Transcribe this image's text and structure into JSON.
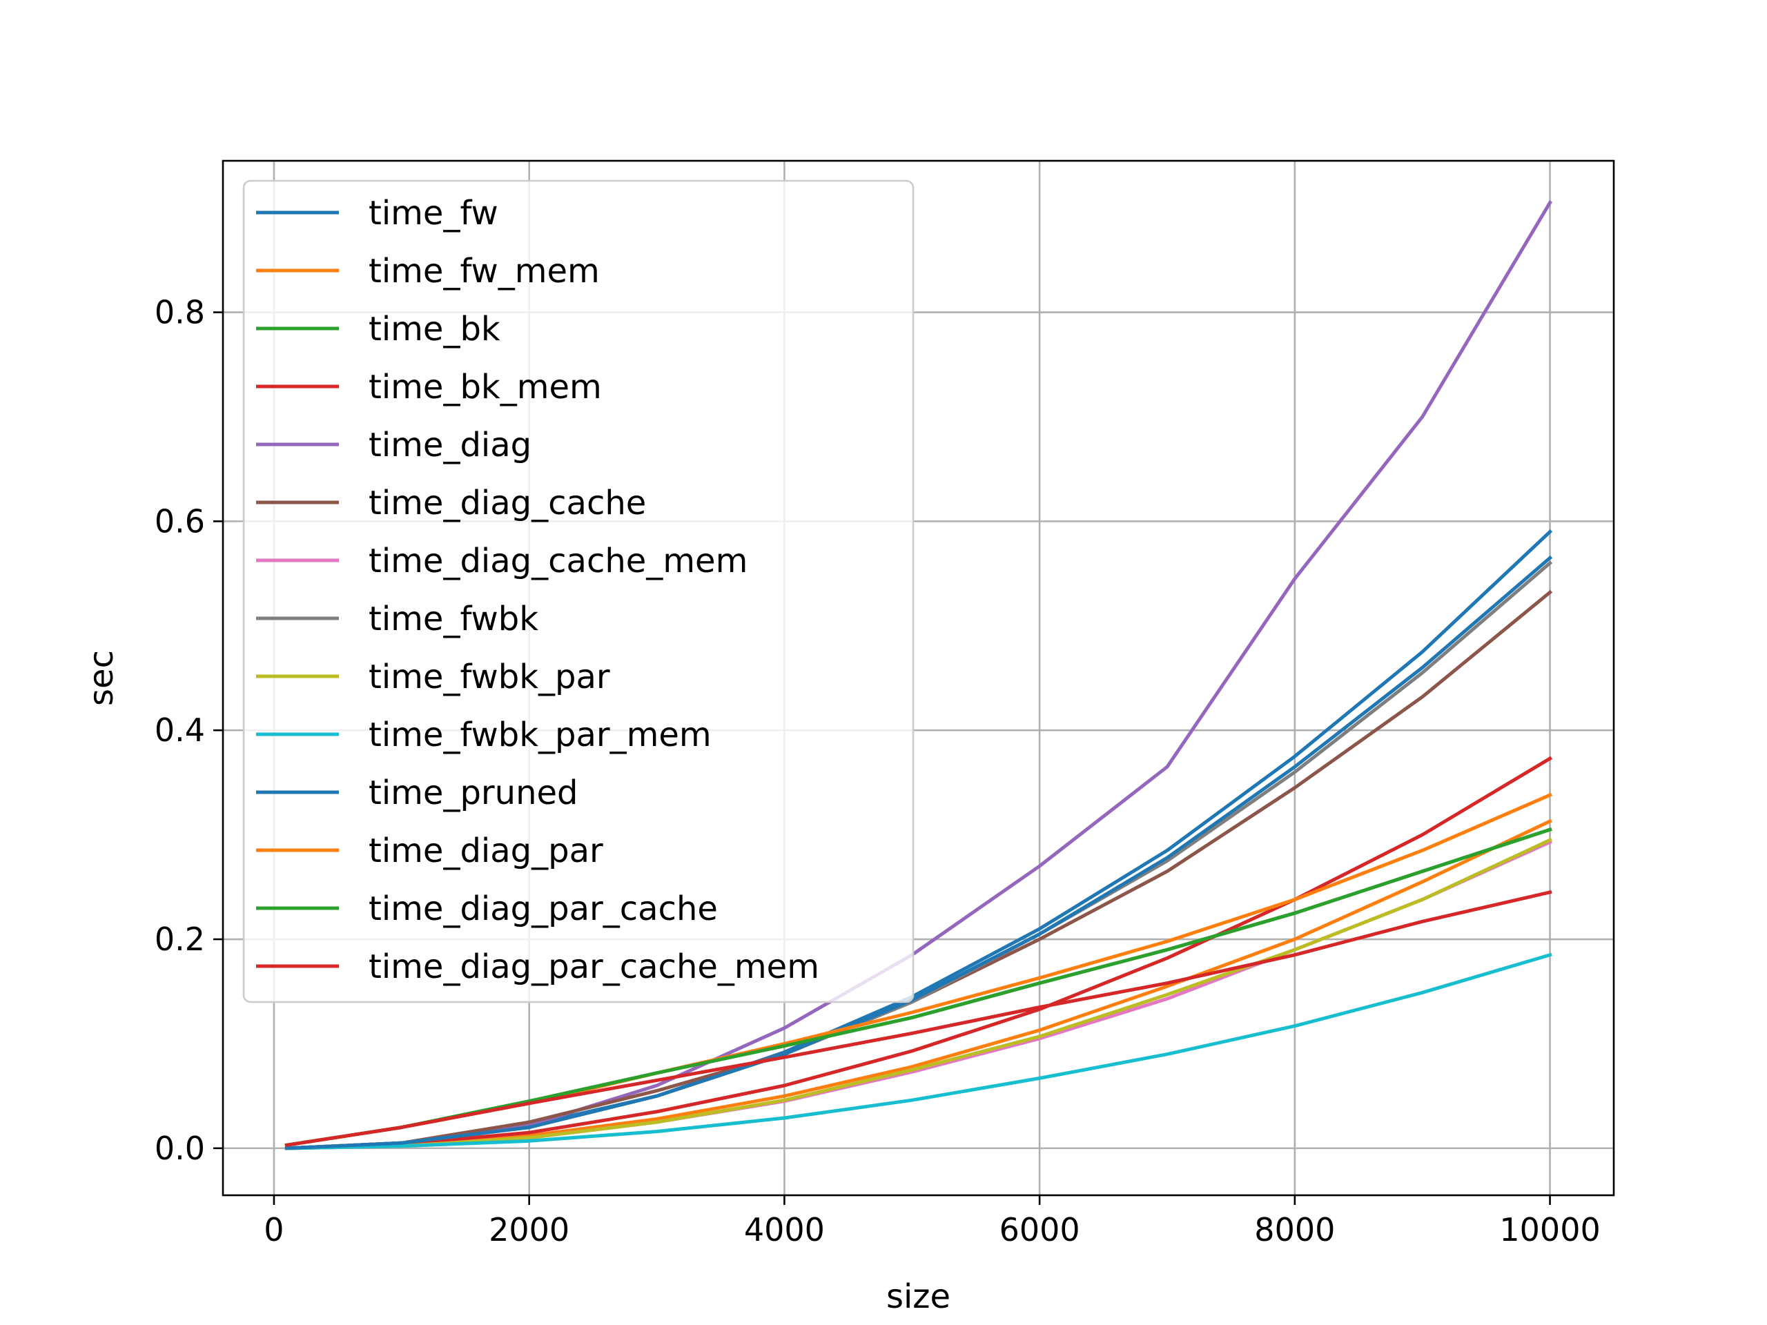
{
  "chart_data": {
    "type": "line",
    "title": "",
    "xlabel": "size",
    "ylabel": "sec",
    "xlim": [
      -400,
      10500
    ],
    "ylim": [
      -0.045,
      0.945
    ],
    "xticks": [
      0,
      2000,
      4000,
      6000,
      8000,
      10000
    ],
    "yticks": [
      0.0,
      0.2,
      0.4,
      0.6,
      0.8
    ],
    "xtick_labels": [
      "0",
      "2000",
      "4000",
      "6000",
      "8000",
      "10000"
    ],
    "ytick_labels": [
      "0.0",
      "0.2",
      "0.4",
      "0.6",
      "0.8"
    ],
    "grid": true,
    "legend_position": "top-left",
    "x": [
      100,
      1000,
      2000,
      3000,
      4000,
      5000,
      6000,
      7000,
      8000,
      9000,
      10000
    ],
    "series": [
      {
        "name": "time_fw",
        "color": "#1f77b4",
        "values": [
          0.0,
          0.005,
          0.022,
          0.05,
          0.092,
          0.145,
          0.21,
          0.285,
          0.375,
          0.475,
          0.59
        ]
      },
      {
        "name": "time_fw_mem",
        "color": "#ff7f0e",
        "values": [
          0.0,
          0.003,
          0.012,
          0.028,
          0.05,
          0.078,
          0.113,
          0.155,
          0.2,
          0.255,
          0.313
        ]
      },
      {
        "name": "time_bk",
        "color": "#2ca02c",
        "values": [
          0.003,
          0.02,
          0.045,
          0.072,
          0.098,
          0.125,
          0.158,
          0.19,
          0.225,
          0.265,
          0.305
        ]
      },
      {
        "name": "time_bk_mem",
        "color": "#d62728",
        "values": [
          0.0,
          0.004,
          0.015,
          0.035,
          0.06,
          0.093,
          0.133,
          0.182,
          0.238,
          0.3,
          0.373
        ]
      },
      {
        "name": "time_diag",
        "color": "#9467bd",
        "values": [
          0.0,
          0.005,
          0.022,
          0.06,
          0.115,
          0.185,
          0.27,
          0.365,
          0.545,
          0.7,
          0.905
        ]
      },
      {
        "name": "time_diag_cache",
        "color": "#8c564b",
        "values": [
          0.0,
          0.005,
          0.025,
          0.055,
          0.09,
          0.14,
          0.2,
          0.265,
          0.345,
          0.432,
          0.532
        ]
      },
      {
        "name": "time_diag_cache_mem",
        "color": "#e377c2",
        "values": [
          0.0,
          0.002,
          0.01,
          0.025,
          0.045,
          0.073,
          0.105,
          0.143,
          0.19,
          0.238,
          0.293
        ]
      },
      {
        "name": "time_fwbk",
        "color": "#7f7f7f",
        "values": [
          0.0,
          0.005,
          0.02,
          0.05,
          0.09,
          0.14,
          0.205,
          0.275,
          0.36,
          0.455,
          0.56
        ]
      },
      {
        "name": "time_fwbk_par",
        "color": "#bcbd22",
        "values": [
          0.0,
          0.002,
          0.01,
          0.025,
          0.046,
          0.075,
          0.107,
          0.147,
          0.19,
          0.238,
          0.295
        ]
      },
      {
        "name": "time_fwbk_par_mem",
        "color": "#17becf",
        "values": [
          0.0,
          0.002,
          0.007,
          0.016,
          0.029,
          0.046,
          0.067,
          0.09,
          0.117,
          0.149,
          0.185
        ]
      },
      {
        "name": "time_pruned",
        "color": "#1f77b4",
        "values": [
          0.0,
          0.005,
          0.02,
          0.05,
          0.09,
          0.142,
          0.205,
          0.278,
          0.365,
          0.46,
          0.565
        ]
      },
      {
        "name": "time_diag_par",
        "color": "#ff7f0e",
        "values": [
          0.003,
          0.02,
          0.043,
          0.072,
          0.1,
          0.13,
          0.163,
          0.198,
          0.238,
          0.285,
          0.338
        ]
      },
      {
        "name": "time_diag_par_cache",
        "color": "#2ca02c",
        "values": [
          0.003,
          0.02,
          0.045,
          0.072,
          0.098,
          0.125,
          0.158,
          0.19,
          0.225,
          0.265,
          0.305
        ]
      },
      {
        "name": "time_diag_par_cache_mem",
        "color": "#d62728",
        "values": [
          0.003,
          0.02,
          0.043,
          0.065,
          0.087,
          0.11,
          0.135,
          0.158,
          0.185,
          0.217,
          0.245
        ]
      }
    ]
  }
}
